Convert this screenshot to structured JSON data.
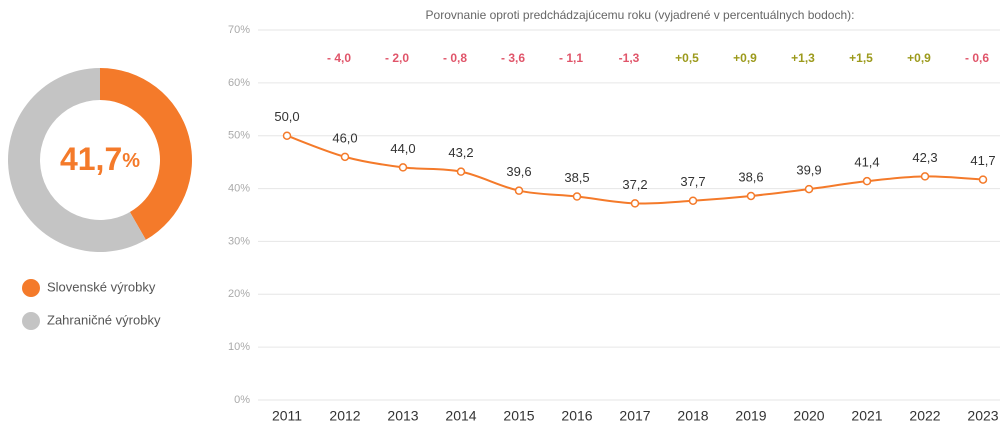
{
  "chart_data": [
    {
      "type": "pie",
      "categories": [
        "Slovenské výrobky",
        "Zahraničné výrobky"
      ],
      "values": [
        41.7,
        58.3
      ],
      "value_labels": [
        "41,7%",
        null
      ],
      "colors": [
        "#f47a2a",
        "#c4c4c4"
      ]
    },
    {
      "type": "line",
      "subtitle": "Porovnanie oproti predchádzajúcemu roku (vyjadrené v percentuálnych bodoch):",
      "categories": [
        "2011",
        "2012",
        "2013",
        "2014",
        "2015",
        "2016",
        "2017",
        "2018",
        "2019",
        "2020",
        "2021",
        "2022",
        "2023"
      ],
      "values": [
        50.0,
        46.0,
        44.0,
        43.2,
        39.6,
        38.5,
        37.2,
        37.7,
        38.6,
        39.9,
        41.4,
        42.3,
        41.7
      ],
      "value_labels": [
        "50,0",
        "46,0",
        "44,0",
        "43,2",
        "39,6",
        "38,5",
        "37,2",
        "37,7",
        "38,6",
        "39,9",
        "41,4",
        "42,3",
        "41,7"
      ],
      "color": "#f47a2a",
      "ylim": [
        0,
        70
      ],
      "yticks": [
        {
          "value": 0,
          "label": "0%"
        },
        {
          "value": 10,
          "label": "10%"
        },
        {
          "value": 20,
          "label": "20%"
        },
        {
          "value": 30,
          "label": "30%"
        },
        {
          "value": 40,
          "label": "40%"
        },
        {
          "value": 50,
          "label": "50%"
        },
        {
          "value": 60,
          "label": "60%"
        },
        {
          "value": 70,
          "label": "70%"
        }
      ],
      "grid": true,
      "changes": [
        -4.0,
        -2.0,
        -0.8,
        -3.6,
        -1.1,
        -1.3,
        0.5,
        0.9,
        1.3,
        1.5,
        0.9,
        -0.6
      ],
      "change_labels": [
        "- 4,0",
        "- 2,0",
        "- 0,8",
        "- 3,6",
        "- 1,1",
        "-1,3",
        "+0,5",
        "+0,9",
        "+1,3",
        "+1,5",
        "+0,9",
        "- 0,6"
      ],
      "negative_color": "#e0556a",
      "positive_color": "#9c9a1c"
    }
  ]
}
